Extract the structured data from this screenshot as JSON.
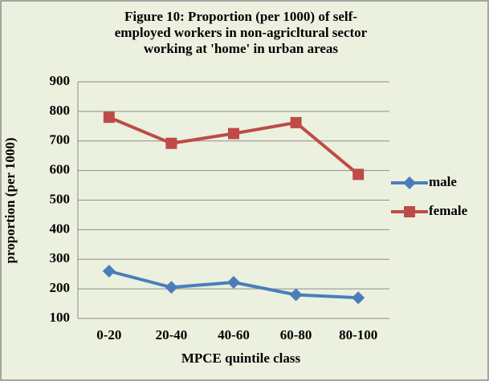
{
  "chart_data": {
    "type": "line",
    "title": [
      "Figure 10: Proportion (per 1000) of self-",
      "employed workers in non-agricltural sector",
      "working at 'home' in urban areas"
    ],
    "x_label": "MPCE quintile class",
    "y_label": "proportion (per 1000)",
    "categories": [
      "0-20",
      "20-40",
      "40-60",
      "60-80",
      "80-100"
    ],
    "series": [
      {
        "name": "male",
        "color": "#4a7ebb",
        "marker": "diamond",
        "values": [
          260,
          205,
          222,
          180,
          170
        ]
      },
      {
        "name": "female",
        "color": "#be4b48",
        "marker": "square",
        "values": [
          780,
          692,
          725,
          762,
          587
        ]
      }
    ],
    "ylim": [
      100,
      900
    ],
    "yticks": [
      100,
      200,
      300,
      400,
      500,
      600,
      700,
      800,
      900
    ],
    "grid": true,
    "legend": "right"
  }
}
